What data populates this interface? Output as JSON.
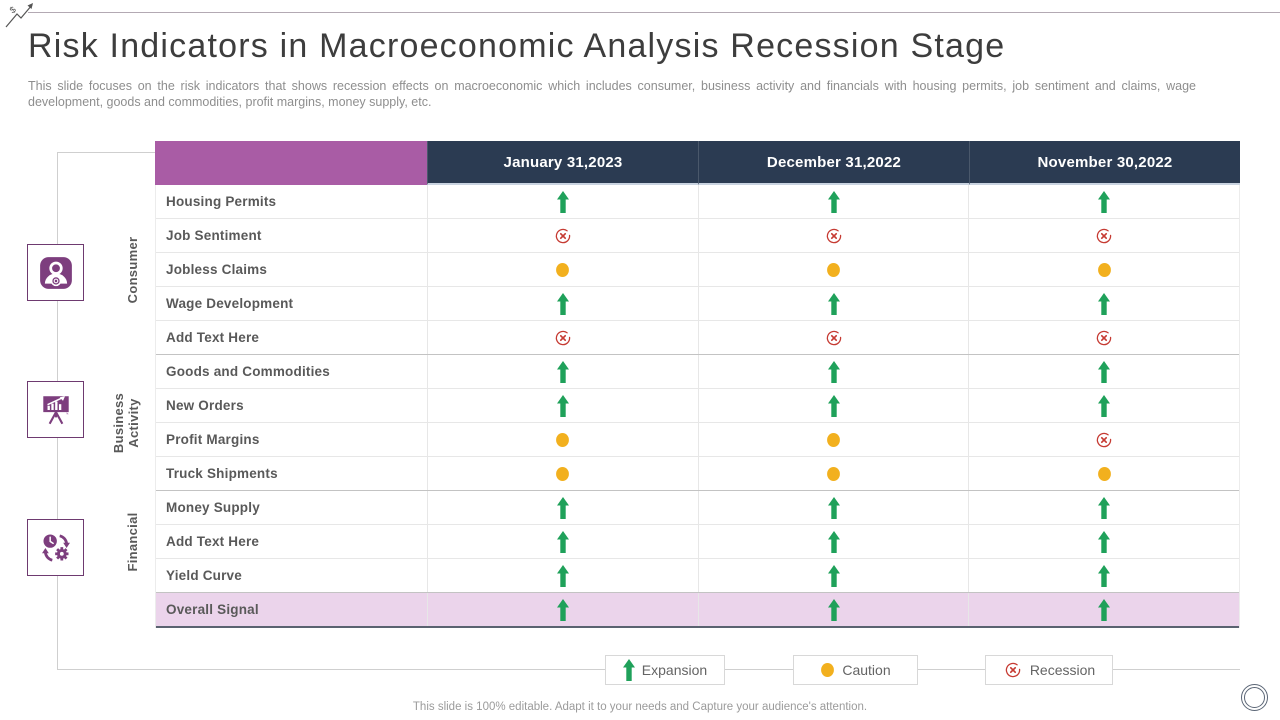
{
  "slide": {
    "title": "Risk Indicators in Macroeconomic Analysis Recession Stage",
    "subtitle": "This slide focuses on the risk indicators that shows recession effects on macroeconomic which includes consumer, business activity and financials with housing permits, job sentiment and claims, wage development, goods and commodities, profit margins, money supply, etc.",
    "footer": "This slide is 100% editable. Adapt it to your needs and Capture your audience's attention."
  },
  "table": {
    "columns": [
      "January 31,2023",
      "December 31,2022",
      "November 30,2022"
    ],
    "groups": [
      {
        "label": "Consumer",
        "icon": "consumer-person-icon",
        "row_count": 5
      },
      {
        "label": "Business Activity",
        "icon": "business-presentation-chart-icon",
        "row_count": 4
      },
      {
        "label": "Financial",
        "icon": "financial-process-clock-gear-icon",
        "row_count": 3
      }
    ],
    "rows": [
      {
        "label": "Housing Permits",
        "values": [
          "expansion",
          "expansion",
          "expansion"
        ]
      },
      {
        "label": "Job Sentiment",
        "values": [
          "recession",
          "recession",
          "recession"
        ]
      },
      {
        "label": "Jobless Claims",
        "values": [
          "caution",
          "caution",
          "caution"
        ]
      },
      {
        "label": "Wage Development",
        "values": [
          "expansion",
          "expansion",
          "expansion"
        ]
      },
      {
        "label": "Add Text Here",
        "values": [
          "recession",
          "recession",
          "recession"
        ]
      },
      {
        "label": "Goods and Commodities",
        "values": [
          "expansion",
          "expansion",
          "expansion"
        ]
      },
      {
        "label": "New Orders",
        "values": [
          "expansion",
          "expansion",
          "expansion"
        ]
      },
      {
        "label": "Profit Margins",
        "values": [
          "caution",
          "caution",
          "recession"
        ]
      },
      {
        "label": "Truck Shipments",
        "values": [
          "caution",
          "caution",
          "caution"
        ]
      },
      {
        "label": "Money Supply",
        "values": [
          "expansion",
          "expansion",
          "expansion"
        ]
      },
      {
        "label": "Add Text Here",
        "values": [
          "expansion",
          "expansion",
          "expansion"
        ]
      },
      {
        "label": "Yield Curve",
        "values": [
          "expansion",
          "expansion",
          "expansion"
        ]
      },
      {
        "label": "Overall Signal",
        "values": [
          "expansion",
          "expansion",
          "expansion"
        ],
        "highlight": true
      }
    ]
  },
  "legend": [
    {
      "label": "Expansion",
      "status": "expansion",
      "icon": "green-up-arrow-icon"
    },
    {
      "label": "Caution",
      "status": "caution",
      "icon": "amber-dot-icon"
    },
    {
      "label": "Recession",
      "status": "recession",
      "icon": "red-circle-x-icon"
    }
  ],
  "icons": {
    "expansion": "green-up-arrow-icon",
    "caution": "amber-dot-icon",
    "recession": "red-circle-x-icon",
    "top_left": "dollar-trend-arrow-icon",
    "bottom_right": "logo-placeholder-circle-icon"
  },
  "colors": {
    "accent_purple": "#a95ca5",
    "icon_purple": "#7d3e7e",
    "header_navy": "#2b3b52",
    "expansion_green": "#1fa15a",
    "caution_amber": "#f2b01e",
    "recession_red": "#c63b33",
    "highlight_row": "#ebd4eb"
  }
}
